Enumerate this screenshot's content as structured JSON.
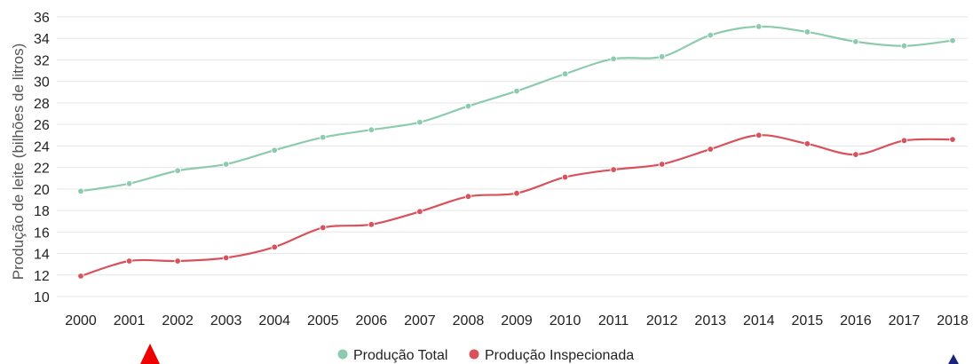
{
  "chart_data": {
    "type": "line",
    "ylabel": "Produção de leite (bilhões de litros)",
    "ylim": [
      10,
      36
    ],
    "y_ticks": [
      "10",
      "12",
      "14",
      "16",
      "18",
      "20",
      "22",
      "24",
      "26",
      "28",
      "30",
      "32",
      "34",
      "36"
    ],
    "x": [
      "2000",
      "2001",
      "2002",
      "2003",
      "2004",
      "2005",
      "2006",
      "2007",
      "2008",
      "2009",
      "2010",
      "2011",
      "2012",
      "2013",
      "2014",
      "2015",
      "2016",
      "2017",
      "2018"
    ],
    "grid": true,
    "legend_position": "bottom",
    "series": [
      {
        "name": "Produção Total",
        "color": "#8ccbae",
        "values": [
          19.8,
          20.5,
          21.7,
          22.3,
          23.6,
          24.8,
          25.5,
          26.2,
          27.7,
          29.1,
          30.7,
          32.1,
          32.3,
          34.3,
          35.1,
          34.6,
          33.7,
          33.3,
          33.8
        ]
      },
      {
        "name": "Produção Inspecionada",
        "color": "#d9515a",
        "values": [
          11.9,
          13.3,
          13.3,
          13.6,
          14.6,
          16.4,
          16.7,
          17.9,
          19.3,
          19.6,
          21.1,
          21.8,
          22.3,
          23.7,
          25.0,
          24.2,
          23.2,
          24.5,
          24.6
        ]
      }
    ]
  },
  "decorations": [
    {
      "shape": "triangle-up",
      "color": "#ee0000"
    },
    {
      "shape": "triangle-up",
      "color": "#1a237e"
    }
  ]
}
